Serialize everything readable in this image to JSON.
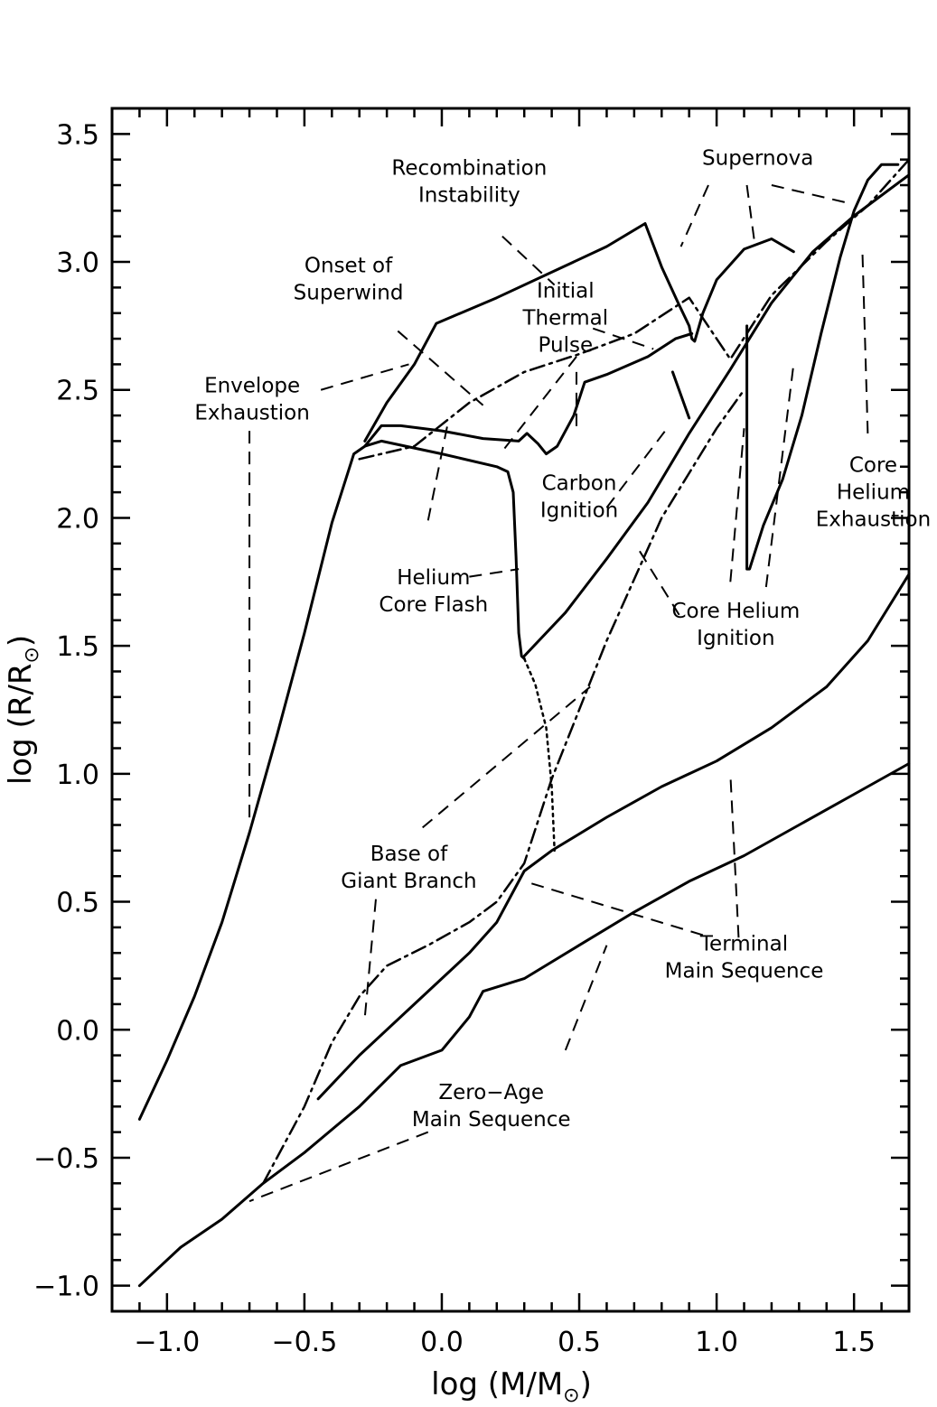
{
  "chart_data": {
    "type": "line",
    "xlabel": "log (M/M",
    "xlabel_sub": "⊙",
    "xlabel_end": ")",
    "ylabel": "log (R/R",
    "ylabel_sub": "⊙",
    "ylabel_end": ")",
    "xlim": [
      -1.2,
      1.7
    ],
    "ylim": [
      -1.1,
      3.6
    ],
    "xticks": [
      {
        "value": -1.0,
        "label": "−1.0"
      },
      {
        "value": -0.5,
        "label": "−0.5"
      },
      {
        "value": 0.0,
        "label": "0.0"
      },
      {
        "value": 0.5,
        "label": "0.5"
      },
      {
        "value": 1.0,
        "label": "1.0"
      },
      {
        "value": 1.5,
        "label": "1.5"
      }
    ],
    "yticks": [
      {
        "value": -1.0,
        "label": "−1.0"
      },
      {
        "value": -0.5,
        "label": "−0.5"
      },
      {
        "value": 0.0,
        "label": "0.0"
      },
      {
        "value": 0.5,
        "label": "0.5"
      },
      {
        "value": 1.0,
        "label": "1.0"
      },
      {
        "value": 1.5,
        "label": "1.5"
      },
      {
        "value": 2.0,
        "label": "2.0"
      },
      {
        "value": 2.5,
        "label": "2.5"
      },
      {
        "value": 3.0,
        "label": "3.0"
      },
      {
        "value": 3.5,
        "label": "3.5"
      }
    ],
    "grid": false,
    "series": [
      {
        "style": "solid",
        "points": [
          [
            -1.1,
            -1.0
          ],
          [
            -0.95,
            -0.85
          ],
          [
            -0.8,
            -0.74
          ],
          [
            -0.65,
            -0.6
          ],
          [
            -0.5,
            -0.48
          ],
          [
            -0.3,
            -0.3
          ],
          [
            -0.15,
            -0.14
          ],
          [
            0.0,
            -0.08
          ],
          [
            0.1,
            0.05
          ],
          [
            0.15,
            0.15
          ],
          [
            0.3,
            0.2
          ],
          [
            0.5,
            0.33
          ],
          [
            0.7,
            0.46
          ],
          [
            0.9,
            0.58
          ],
          [
            1.1,
            0.68
          ],
          [
            1.3,
            0.8
          ],
          [
            1.5,
            0.92
          ],
          [
            1.7,
            1.04
          ]
        ]
      },
      {
        "style": "solid",
        "points": [
          [
            -0.45,
            -0.27
          ],
          [
            -0.3,
            -0.1
          ],
          [
            -0.1,
            0.1
          ],
          [
            0.1,
            0.3
          ],
          [
            0.2,
            0.42
          ],
          [
            0.3,
            0.62
          ],
          [
            0.4,
            0.7
          ],
          [
            0.6,
            0.83
          ],
          [
            0.8,
            0.95
          ],
          [
            1.0,
            1.05
          ],
          [
            1.2,
            1.18
          ],
          [
            1.4,
            1.34
          ],
          [
            1.55,
            1.52
          ],
          [
            1.7,
            1.78
          ]
        ]
      },
      {
        "style": "dashdot",
        "points": [
          [
            -0.65,
            -0.6
          ],
          [
            -0.5,
            -0.3
          ],
          [
            -0.4,
            -0.05
          ],
          [
            -0.3,
            0.13
          ],
          [
            -0.2,
            0.25
          ],
          [
            -0.05,
            0.33
          ],
          [
            0.1,
            0.42
          ],
          [
            0.2,
            0.5
          ],
          [
            0.3,
            0.65
          ],
          [
            0.4,
            0.98
          ],
          [
            0.6,
            1.52
          ],
          [
            0.8,
            2.0
          ],
          [
            1.0,
            2.35
          ],
          [
            1.1,
            2.5
          ]
        ]
      },
      {
        "style": "solid",
        "points": [
          [
            0.3,
            1.46
          ],
          [
            0.45,
            1.63
          ],
          [
            0.6,
            1.84
          ],
          [
            0.75,
            2.06
          ],
          [
            0.9,
            2.33
          ],
          [
            1.05,
            2.58
          ],
          [
            1.2,
            2.84
          ],
          [
            1.35,
            3.04
          ],
          [
            1.5,
            3.18
          ],
          [
            1.7,
            3.34
          ]
        ]
      },
      {
        "style": "dashdot",
        "points": [
          [
            -0.3,
            2.23
          ],
          [
            -0.1,
            2.28
          ],
          [
            0.1,
            2.45
          ],
          [
            0.3,
            2.57
          ],
          [
            0.5,
            2.64
          ],
          [
            0.7,
            2.72
          ],
          [
            0.9,
            2.86
          ],
          [
            1.05,
            2.62
          ],
          [
            1.2,
            2.87
          ],
          [
            1.4,
            3.08
          ],
          [
            1.55,
            3.22
          ],
          [
            1.7,
            3.4
          ]
        ]
      },
      {
        "style": "solid",
        "points": [
          [
            -1.1,
            -0.35
          ],
          [
            -1.0,
            -0.12
          ],
          [
            -0.9,
            0.13
          ],
          [
            -0.8,
            0.42
          ],
          [
            -0.7,
            0.77
          ],
          [
            -0.6,
            1.15
          ],
          [
            -0.5,
            1.55
          ],
          [
            -0.4,
            1.98
          ],
          [
            -0.32,
            2.25
          ],
          [
            -0.28,
            2.28
          ],
          [
            -0.22,
            2.3
          ],
          [
            0.0,
            2.25
          ],
          [
            0.2,
            2.2
          ],
          [
            0.24,
            2.18
          ],
          [
            0.26,
            2.1
          ],
          [
            0.27,
            1.85
          ],
          [
            0.28,
            1.55
          ],
          [
            0.29,
            1.46
          ],
          [
            0.3,
            1.45
          ]
        ]
      },
      {
        "style": "dotted",
        "points": [
          [
            0.3,
            1.45
          ],
          [
            0.34,
            1.35
          ],
          [
            0.38,
            1.18
          ],
          [
            0.4,
            0.95
          ],
          [
            0.41,
            0.7
          ]
        ]
      },
      {
        "style": "solid",
        "points": [
          [
            -0.28,
            2.28
          ],
          [
            -0.22,
            2.36
          ],
          [
            -0.15,
            2.36
          ],
          [
            0.0,
            2.34
          ],
          [
            0.15,
            2.31
          ],
          [
            0.28,
            2.3
          ],
          [
            0.31,
            2.33
          ],
          [
            0.35,
            2.29
          ],
          [
            0.38,
            2.25
          ],
          [
            0.42,
            2.28
          ],
          [
            0.48,
            2.4
          ],
          [
            0.52,
            2.53
          ],
          [
            0.6,
            2.56
          ],
          [
            0.75,
            2.63
          ],
          [
            0.85,
            2.7
          ],
          [
            0.91,
            2.72
          ]
        ]
      },
      {
        "style": "solid",
        "points": [
          [
            -0.28,
            2.3
          ],
          [
            -0.2,
            2.45
          ],
          [
            -0.1,
            2.6
          ],
          [
            -0.02,
            2.76
          ],
          [
            0.2,
            2.86
          ],
          [
            0.4,
            2.96
          ],
          [
            0.6,
            3.06
          ],
          [
            0.74,
            3.15
          ],
          [
            0.8,
            2.98
          ],
          [
            0.86,
            2.84
          ],
          [
            0.9,
            2.75
          ],
          [
            0.91,
            2.7
          ],
          [
            0.92,
            2.69
          ],
          [
            0.95,
            2.8
          ],
          [
            1.0,
            2.93
          ],
          [
            1.1,
            3.05
          ],
          [
            1.2,
            3.09
          ],
          [
            1.28,
            3.04
          ]
        ]
      },
      {
        "style": "solid",
        "points": [
          [
            1.11,
            2.75
          ],
          [
            1.11,
            1.8
          ],
          [
            1.12,
            1.8
          ],
          [
            1.17,
            1.97
          ],
          [
            1.24,
            2.15
          ],
          [
            1.31,
            2.4
          ],
          [
            1.38,
            2.72
          ],
          [
            1.45,
            3.02
          ],
          [
            1.5,
            3.2
          ],
          [
            1.55,
            3.32
          ],
          [
            1.6,
            3.38
          ],
          [
            1.66,
            3.38
          ]
        ]
      },
      {
        "style": "solid",
        "points": [
          [
            0.84,
            2.57
          ],
          [
            0.9,
            2.39
          ]
        ]
      }
    ],
    "annotations": [
      {
        "lines": [
          "Recombination",
          "Instability"
        ],
        "at": [
          0.1,
          3.34
        ]
      },
      {
        "lines": [
          "Supernova"
        ],
        "at": [
          1.15,
          3.38
        ]
      },
      {
        "lines": [
          "Onset of",
          "Superwind"
        ],
        "at": [
          -0.34,
          2.96
        ]
      },
      {
        "lines": [
          "Initial",
          "Thermal",
          "Pulse"
        ],
        "at": [
          0.45,
          2.86
        ]
      },
      {
        "lines": [
          "Envelope",
          "Exhaustion"
        ],
        "at": [
          -0.69,
          2.49
        ]
      },
      {
        "lines": [
          "Carbon",
          "Ignition"
        ],
        "at": [
          0.5,
          2.11
        ]
      },
      {
        "lines": [
          "Core",
          "Helium",
          "Exhaustion"
        ],
        "at": [
          1.57,
          2.18
        ]
      },
      {
        "lines": [
          "Helium",
          "Core Flash"
        ],
        "at": [
          -0.03,
          1.74
        ]
      },
      {
        "lines": [
          "Core Helium",
          "Ignition"
        ],
        "at": [
          1.07,
          1.61
        ]
      },
      {
        "lines": [
          "Base of",
          "Giant Branch"
        ],
        "at": [
          -0.12,
          0.66
        ]
      },
      {
        "lines": [
          "Terminal",
          "Main Sequence"
        ],
        "at": [
          1.1,
          0.31
        ]
      },
      {
        "lines": [
          "Zero−Age",
          "Main Sequence"
        ],
        "at": [
          0.18,
          -0.27
        ]
      }
    ],
    "leaders": [
      [
        [
          0.22,
          3.1
        ],
        [
          0.41,
          2.91
        ]
      ],
      [
        [
          0.97,
          3.3
        ],
        [
          0.87,
          3.06
        ]
      ],
      [
        [
          1.11,
          3.3
        ],
        [
          1.14,
          3.06
        ]
      ],
      [
        [
          1.2,
          3.3
        ],
        [
          1.48,
          3.23
        ]
      ],
      [
        [
          -0.16,
          2.73
        ],
        [
          0.15,
          2.44
        ]
      ],
      [
        [
          0.55,
          2.74
        ],
        [
          0.77,
          2.66
        ]
      ],
      [
        [
          0.49,
          2.57
        ],
        [
          0.49,
          2.34
        ]
      ],
      [
        [
          0.49,
          2.63
        ],
        [
          0.22,
          2.26
        ]
      ],
      [
        [
          -0.44,
          2.5
        ],
        [
          -0.12,
          2.6
        ]
      ],
      [
        [
          -0.7,
          2.34
        ],
        [
          -0.7,
          0.82
        ]
      ],
      [
        [
          0.6,
          2.04
        ],
        [
          0.82,
          2.35
        ]
      ],
      [
        [
          1.55,
          2.33
        ],
        [
          1.53,
          3.06
        ]
      ],
      [
        [
          0.1,
          1.77
        ],
        [
          0.28,
          1.8
        ]
      ],
      [
        [
          -0.05,
          1.99
        ],
        [
          0.02,
          2.36
        ]
      ],
      [
        [
          0.72,
          1.87
        ],
        [
          0.87,
          1.61
        ]
      ],
      [
        [
          1.05,
          1.75
        ],
        [
          1.1,
          2.35
        ]
      ],
      [
        [
          1.18,
          1.73
        ],
        [
          1.28,
          2.6
        ]
      ],
      [
        [
          -0.07,
          0.79
        ],
        [
          0.54,
          1.34
        ]
      ],
      [
        [
          -0.24,
          0.51
        ],
        [
          -0.28,
          0.05
        ]
      ],
      [
        [
          0.95,
          0.37
        ],
        [
          0.3,
          0.58
        ]
      ],
      [
        [
          1.08,
          0.36
        ],
        [
          1.05,
          1.0
        ]
      ],
      [
        [
          0.45,
          -0.08
        ],
        [
          0.6,
          0.33
        ]
      ],
      [
        [
          -0.05,
          -0.4
        ],
        [
          -0.7,
          -0.67
        ]
      ]
    ]
  }
}
